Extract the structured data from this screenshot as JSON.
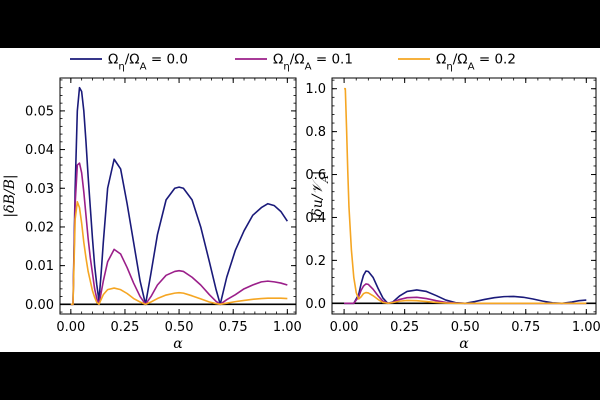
{
  "colors": {
    "dark_navy": "#1a1a7a",
    "purple": "#9b1f8a",
    "orange": "#f5a623"
  },
  "legend": {
    "position": "top-center",
    "entries": [
      {
        "label": "Ωη/ΩA = 0.0",
        "color": "#1a1a7a"
      },
      {
        "label": "Ωη/ΩA = 0.1",
        "color": "#9b1f8a"
      },
      {
        "label": "Ωη/ΩA = 0.2",
        "color": "#f5a623"
      }
    ]
  },
  "chart_data": [
    {
      "type": "line",
      "title": "",
      "xlabel": "α",
      "ylabel": "|δB/B|",
      "xlim": [
        -0.05,
        1.04
      ],
      "ylim": [
        -0.0025,
        0.0585
      ],
      "xticks": [
        0.0,
        0.25,
        0.5,
        0.75,
        1.0
      ],
      "xtick_labels": [
        "0.00",
        "0.25",
        "0.50",
        "0.75",
        "1.00"
      ],
      "yticks": [
        0.0,
        0.01,
        0.02,
        0.03,
        0.04,
        0.05
      ],
      "ytick_labels": [
        "0.00",
        "0.01",
        "0.02",
        "0.03",
        "0.04",
        "0.05"
      ],
      "grid": false,
      "series": [
        {
          "name": "Ωη/ΩA = 0.0",
          "color": "#1a1a7a",
          "x": [
            0.0,
            0.005,
            0.01,
            0.02,
            0.03,
            0.04,
            0.05,
            0.06,
            0.07,
            0.08,
            0.09,
            0.1,
            0.11,
            0.12,
            0.13,
            0.14,
            0.15,
            0.17,
            0.2,
            0.23,
            0.26,
            0.29,
            0.32,
            0.345,
            0.37,
            0.4,
            0.44,
            0.48,
            0.5,
            0.52,
            0.56,
            0.6,
            0.64,
            0.67,
            0.69,
            0.72,
            0.76,
            0.8,
            0.84,
            0.88,
            0.91,
            0.94,
            0.97,
            1.0
          ],
          "y": [
            0.0,
            0.0,
            0.0,
            0.03,
            0.05,
            0.056,
            0.055,
            0.05,
            0.042,
            0.033,
            0.025,
            0.017,
            0.01,
            0.005,
            0.001,
            0.008,
            0.016,
            0.03,
            0.0375,
            0.035,
            0.026,
            0.016,
            0.006,
            0.0,
            0.008,
            0.018,
            0.027,
            0.03,
            0.0303,
            0.03,
            0.027,
            0.02,
            0.011,
            0.004,
            0.0,
            0.007,
            0.014,
            0.019,
            0.023,
            0.025,
            0.026,
            0.0255,
            0.024,
            0.0215
          ]
        },
        {
          "name": "Ωη/ΩA = 0.1",
          "color": "#9b1f8a",
          "x": [
            0.0,
            0.005,
            0.01,
            0.02,
            0.03,
            0.04,
            0.05,
            0.06,
            0.07,
            0.08,
            0.09,
            0.1,
            0.11,
            0.12,
            0.13,
            0.15,
            0.17,
            0.2,
            0.23,
            0.26,
            0.29,
            0.32,
            0.345,
            0.37,
            0.4,
            0.44,
            0.48,
            0.5,
            0.52,
            0.56,
            0.6,
            0.64,
            0.67,
            0.69,
            0.72,
            0.76,
            0.8,
            0.84,
            0.88,
            0.91,
            0.94,
            0.97,
            1.0
          ],
          "y": [
            0.0,
            0.0,
            0.0,
            0.026,
            0.036,
            0.0365,
            0.034,
            0.029,
            0.023,
            0.017,
            0.012,
            0.008,
            0.004,
            0.0015,
            0.0,
            0.006,
            0.011,
            0.0142,
            0.013,
            0.0095,
            0.0055,
            0.002,
            0.0,
            0.002,
            0.005,
            0.0075,
            0.0085,
            0.0087,
            0.0085,
            0.007,
            0.005,
            0.0025,
            0.0008,
            0.0,
            0.0012,
            0.0025,
            0.004,
            0.005,
            0.0058,
            0.006,
            0.0058,
            0.0055,
            0.005
          ]
        },
        {
          "name": "Ωη/ΩA = 0.2",
          "color": "#f5a623",
          "x": [
            0.0,
            0.005,
            0.01,
            0.02,
            0.03,
            0.04,
            0.05,
            0.06,
            0.07,
            0.08,
            0.09,
            0.1,
            0.11,
            0.12,
            0.13,
            0.15,
            0.17,
            0.2,
            0.23,
            0.26,
            0.29,
            0.32,
            0.345,
            0.37,
            0.4,
            0.44,
            0.48,
            0.5,
            0.52,
            0.56,
            0.6,
            0.64,
            0.67,
            0.69,
            0.72,
            0.76,
            0.8,
            0.84,
            0.88,
            0.91,
            0.94,
            0.97,
            1.0
          ],
          "y": [
            0.0,
            0.0,
            0.0,
            0.022,
            0.0265,
            0.025,
            0.021,
            0.016,
            0.012,
            0.0085,
            0.006,
            0.0035,
            0.0018,
            0.0005,
            0.0,
            0.0025,
            0.0038,
            0.0042,
            0.0038,
            0.0028,
            0.0015,
            0.0006,
            0.0,
            0.0006,
            0.0015,
            0.0024,
            0.0029,
            0.003,
            0.0029,
            0.0022,
            0.0014,
            0.0006,
            0.0002,
            0.0,
            0.0003,
            0.0007,
            0.001,
            0.0013,
            0.0015,
            0.0016,
            0.0016,
            0.0016,
            0.0015
          ]
        }
      ]
    },
    {
      "type": "line",
      "title": "",
      "xlabel": "α",
      "ylabel": "|δu/𝒱A|",
      "xlim": [
        -0.05,
        1.04
      ],
      "ylim": [
        -0.05,
        1.05
      ],
      "xticks": [
        0.0,
        0.25,
        0.5,
        0.75,
        1.0
      ],
      "xtick_labels": [
        "0.00",
        "0.25",
        "0.50",
        "0.75",
        "1.00"
      ],
      "yticks": [
        0.0,
        0.2,
        0.4,
        0.6,
        0.8,
        1.0
      ],
      "ytick_labels": [
        "0.0",
        "0.2",
        "0.4",
        "0.6",
        "0.8",
        "1.0"
      ],
      "grid": false,
      "series": [
        {
          "name": "Ωη/ΩA = 0.0",
          "color": "#1a1a7a",
          "x": [
            0.0,
            0.02,
            0.04,
            0.06,
            0.07,
            0.08,
            0.09,
            0.1,
            0.12,
            0.14,
            0.16,
            0.18,
            0.2,
            0.23,
            0.26,
            0.3,
            0.34,
            0.38,
            0.42,
            0.46,
            0.5,
            0.54,
            0.58,
            0.62,
            0.66,
            0.7,
            0.74,
            0.78,
            0.82,
            0.86,
            0.9,
            0.94,
            0.97,
            1.0
          ],
          "y": [
            0.0,
            0.0,
            0.0,
            0.04,
            0.09,
            0.13,
            0.15,
            0.148,
            0.12,
            0.07,
            0.025,
            0.0,
            0.005,
            0.035,
            0.055,
            0.062,
            0.055,
            0.036,
            0.015,
            0.003,
            0.0,
            0.008,
            0.018,
            0.026,
            0.031,
            0.032,
            0.028,
            0.02,
            0.01,
            0.002,
            0.0,
            0.006,
            0.012,
            0.015
          ]
        },
        {
          "name": "Ωη/ΩA = 0.1",
          "color": "#9b1f8a",
          "x": [
            0.0,
            0.02,
            0.04,
            0.06,
            0.07,
            0.08,
            0.09,
            0.1,
            0.12,
            0.14,
            0.16,
            0.18,
            0.2,
            0.23,
            0.26,
            0.3,
            0.34,
            0.38,
            0.42,
            0.46,
            0.5,
            0.6,
            0.7,
            0.8,
            0.9,
            1.0
          ],
          "y": [
            0.0,
            0.0,
            0.0,
            0.03,
            0.06,
            0.08,
            0.09,
            0.088,
            0.065,
            0.035,
            0.01,
            0.0,
            0.004,
            0.018,
            0.026,
            0.028,
            0.022,
            0.012,
            0.004,
            0.001,
            0.0,
            0.0,
            0.0,
            0.0,
            0.0,
            0.0
          ]
        },
        {
          "name": "Ωη/ΩA = 0.2",
          "color": "#f5a623",
          "x": [
            0.0,
            0.005,
            0.01,
            0.015,
            0.02,
            0.03,
            0.04,
            0.05,
            0.06,
            0.07,
            0.08,
            0.09,
            0.1,
            0.12,
            0.14,
            0.16,
            0.18,
            0.2,
            0.23,
            0.26,
            0.3,
            0.34,
            0.38,
            0.42,
            0.46,
            0.5,
            0.6,
            0.7,
            0.8,
            0.9,
            1.0
          ],
          "y": [
            1.0,
            1.0,
            0.82,
            0.62,
            0.45,
            0.25,
            0.12,
            0.05,
            0.02,
            0.03,
            0.045,
            0.05,
            0.048,
            0.035,
            0.018,
            0.004,
            0.0,
            0.003,
            0.01,
            0.013,
            0.012,
            0.008,
            0.004,
            0.001,
            0.0,
            0.0,
            0.0,
            0.0,
            0.0,
            0.0,
            0.0
          ]
        }
      ]
    }
  ]
}
